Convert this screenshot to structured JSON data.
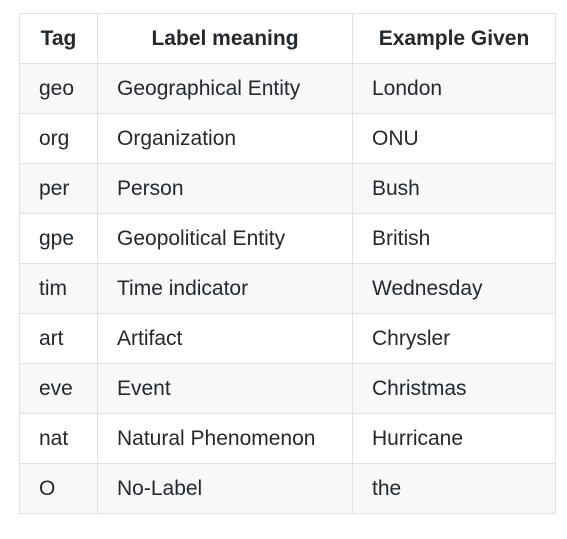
{
  "table": {
    "headers": [
      "Tag",
      "Label meaning",
      "Example Given"
    ],
    "rows": [
      [
        "geo",
        "Geographical Entity",
        "London"
      ],
      [
        "org",
        "Organization",
        "ONU"
      ],
      [
        "per",
        "Person",
        "Bush"
      ],
      [
        "gpe",
        "Geopolitical Entity",
        "British"
      ],
      [
        "tim",
        "Time indicator",
        "Wednesday"
      ],
      [
        "art",
        "Artifact",
        "Chrysler"
      ],
      [
        "eve",
        "Event",
        "Christmas"
      ],
      [
        "nat",
        "Natural Phenomenon",
        "Hurricane"
      ],
      [
        "O",
        "No-Label",
        "the"
      ]
    ]
  },
  "colors": {
    "border": "#dfe2e5",
    "stripe": "#f6f8fa",
    "text": "#24292e"
  }
}
